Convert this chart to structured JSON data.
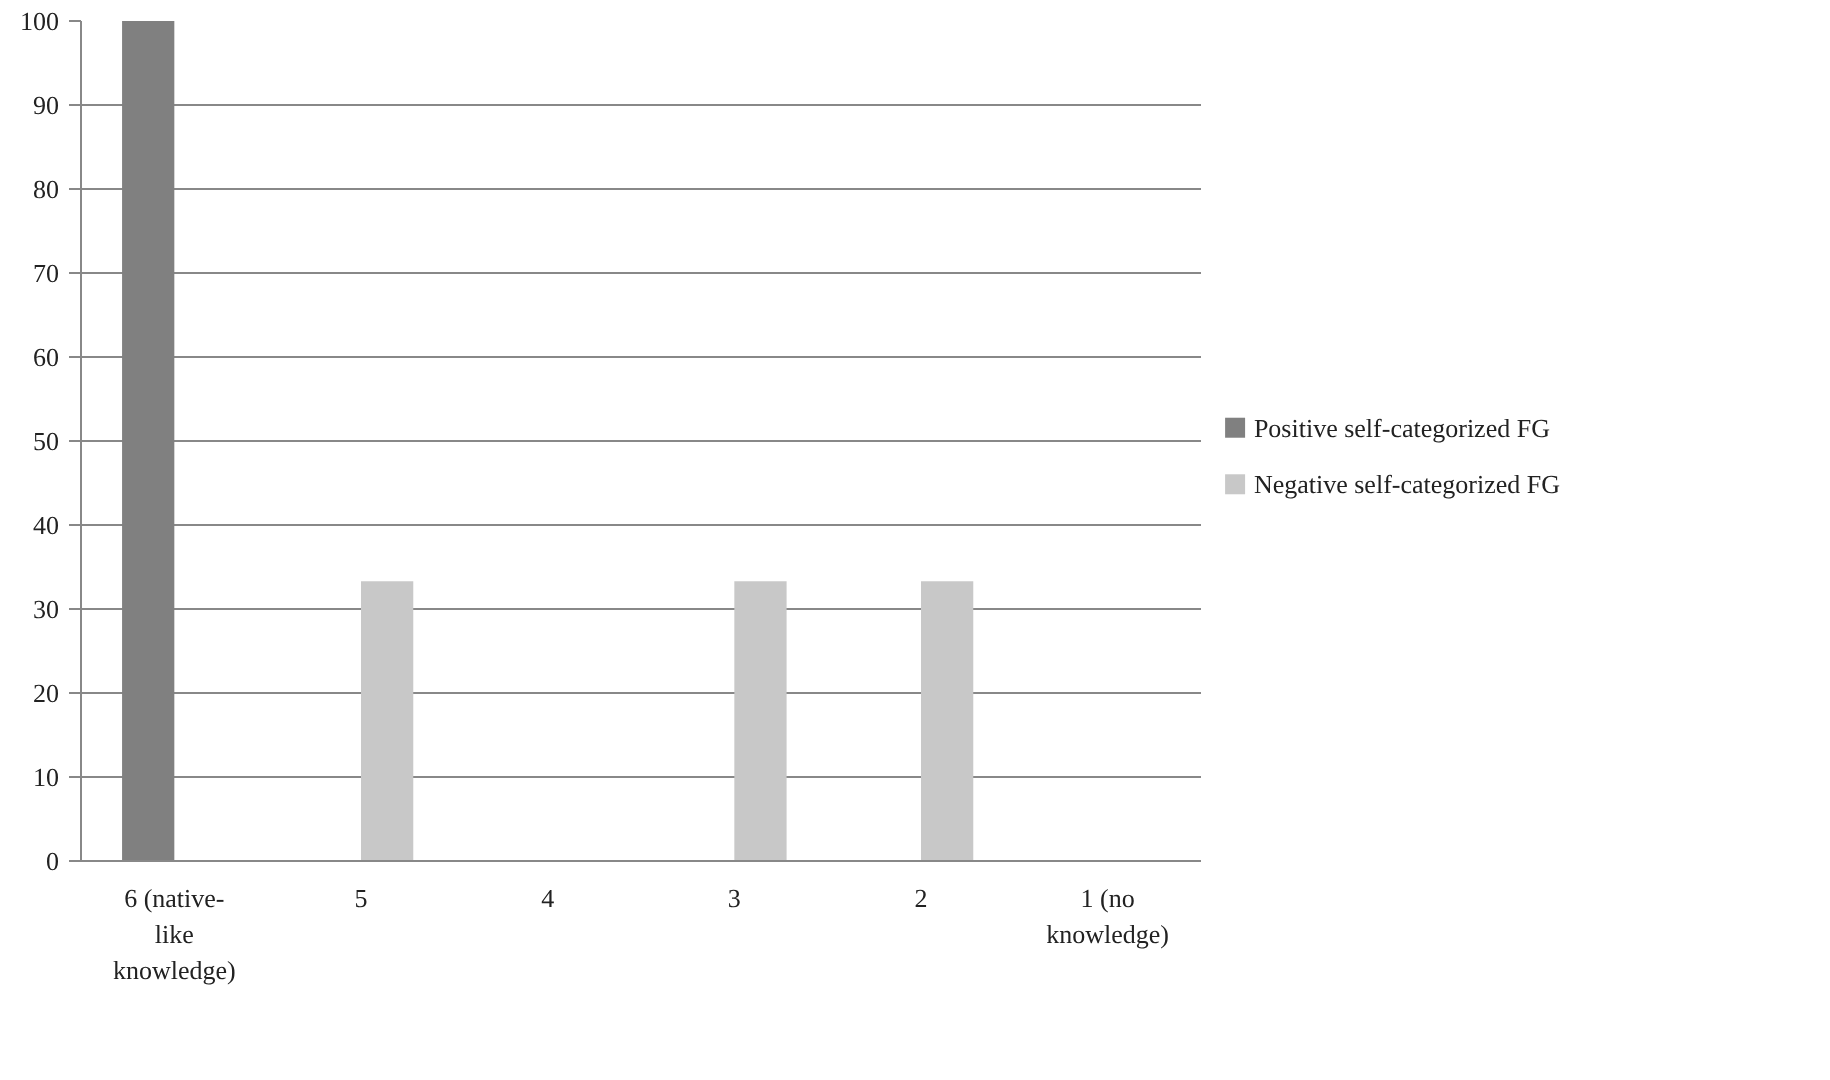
{
  "chart_data": {
    "type": "bar",
    "categories": [
      "6 (native-like knowledge)",
      "5",
      "4",
      "3",
      "2",
      "1 (no knowledge)"
    ],
    "series": [
      {
        "name": "Positive self-categorized FG",
        "color": "#808080",
        "values": [
          100,
          0,
          0,
          0,
          0,
          0
        ]
      },
      {
        "name": "Negative self-categorized FG",
        "color": "#c8c8c8",
        "values": [
          0,
          33.3,
          0,
          33.3,
          33.3,
          0
        ]
      }
    ],
    "ylim": [
      0,
      100
    ],
    "yticks": [
      0,
      10,
      20,
      30,
      40,
      50,
      60,
      70,
      80,
      90,
      100
    ],
    "grid": "y",
    "legend": "right"
  }
}
